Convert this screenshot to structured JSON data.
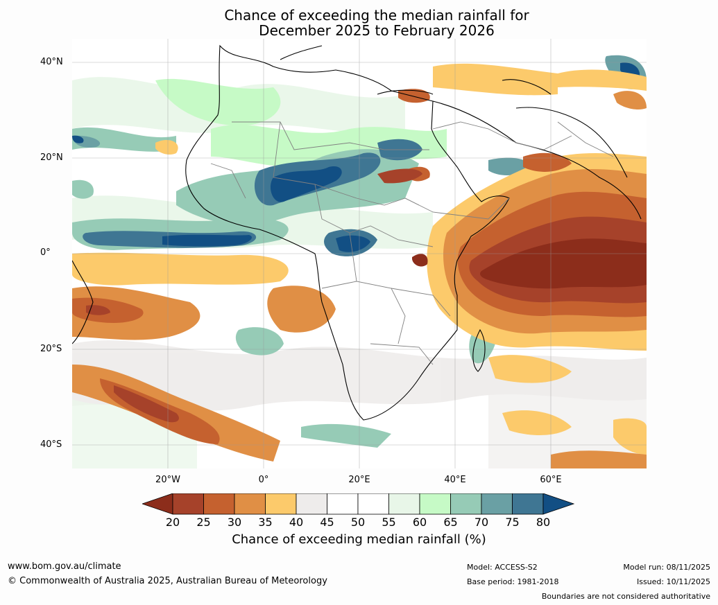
{
  "title": {
    "line1": "Chance of exceeding the median rainfall for",
    "line2": "December 2025 to February 2026"
  },
  "map": {
    "lat_labels": [
      "40°N",
      "20°N",
      "0°",
      "20°S",
      "40°S"
    ],
    "lon_labels": [
      "20°W",
      "0°",
      "20°E",
      "40°E",
      "60°E"
    ],
    "lat_range": [
      -45,
      45
    ],
    "lon_range": [
      -40,
      80
    ]
  },
  "colorbar": {
    "ticks": [
      "20",
      "25",
      "30",
      "35",
      "40",
      "45",
      "50",
      "55",
      "60",
      "65",
      "70",
      "75",
      "80"
    ],
    "colors": {
      "below_20": "#8c2d1b",
      "c20_25": "#a6422a",
      "c25_30": "#c5612f",
      "c30_35": "#e08f45",
      "c35_40": "#fcca6b",
      "c40_45": "#eeeceb",
      "c45_50": "#ffffff",
      "c50_55": "#ffffff",
      "c55_60": "#e8f6e8",
      "c60_65": "#c6fac6",
      "c65_70": "#96cbb6",
      "c70_75": "#6aa0a4",
      "c75_80": "#3f7693",
      "above_80": "#124f84"
    },
    "label": "Chance of exceeding median rainfall (%)"
  },
  "footer": {
    "website": "www.bom.gov.au/climate",
    "copyright": "© Commonwealth of Australia 2025, Australian Bureau of Meteorology",
    "model": "Model: ACCESS-S2",
    "base_period": "Base period: 1981-2018",
    "model_run": "Model run: 08/11/2025",
    "issued": "Issued: 10/11/2025",
    "disclaimer": "Boundaries are not considered authoritative"
  }
}
